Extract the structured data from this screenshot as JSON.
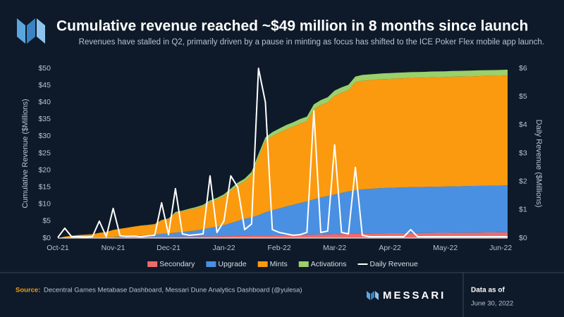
{
  "chart_data": {
    "type": "stacked_area_line",
    "title": "Cumulative revenue reached ~$49 million in 8 months since launch",
    "subtitle": "Revenues have stalled in Q2, primarily driven by a pause in minting as focus has shifted to the ICE Poker Flex mobile app launch.",
    "y_label": "Cumulative Revenue ($Millions)",
    "y2_label": "Daily Revenue ($Millions)",
    "categories": [
      "Oct-21",
      null,
      null,
      null,
      null,
      null,
      null,
      null,
      "Nov-21",
      null,
      null,
      null,
      null,
      null,
      null,
      null,
      "Dec-21",
      null,
      null,
      null,
      null,
      null,
      null,
      null,
      "Jan-22",
      null,
      null,
      null,
      null,
      null,
      null,
      null,
      "Feb-22",
      null,
      null,
      null,
      null,
      null,
      null,
      null,
      "Mar-22",
      null,
      null,
      null,
      null,
      null,
      null,
      null,
      "Apr-22",
      null,
      null,
      null,
      null,
      null,
      null,
      null,
      "May-22",
      null,
      null,
      null,
      null,
      null,
      null,
      null,
      "Jun-22",
      null
    ],
    "series": [
      {
        "name": "Secondary",
        "color": "#f06a6a",
        "values": [
          0,
          0.05,
          0.1,
          0.1,
          0.1,
          0.15,
          0.15,
          0.2,
          0.2,
          0.25,
          0.25,
          0.3,
          0.3,
          0.3,
          0.35,
          0.35,
          0.4,
          0.4,
          0.4,
          0.45,
          0.45,
          0.5,
          0.5,
          0.55,
          0.6,
          0.6,
          0.65,
          0.7,
          0.7,
          0.75,
          0.8,
          0.8,
          0.85,
          0.9,
          0.9,
          0.95,
          1.0,
          1.0,
          1.05,
          1.1,
          1.15,
          1.2,
          1.25,
          1.3,
          1.35,
          1.4,
          1.42,
          1.43,
          1.45,
          1.46,
          1.48,
          1.49,
          1.5,
          1.52,
          1.53,
          1.55,
          1.56,
          1.58,
          1.59,
          1.6,
          1.62,
          1.63,
          1.65,
          1.66,
          1.68,
          1.7
        ]
      },
      {
        "name": "Upgrade",
        "color": "#4a90e2",
        "values": [
          0,
          0,
          0,
          0,
          0,
          0,
          0,
          0,
          0.1,
          0.2,
          0.3,
          0.4,
          0.5,
          0.6,
          0.7,
          0.9,
          1.0,
          1.2,
          1.4,
          1.6,
          1.8,
          2.1,
          2.5,
          2.8,
          3.2,
          3.8,
          4.4,
          5.0,
          5.4,
          6.0,
          6.8,
          7.4,
          7.9,
          8.4,
          8.9,
          9.4,
          9.8,
          10.4,
          10.9,
          11.3,
          11.7,
          12.1,
          12.5,
          12.8,
          13.0,
          13.1,
          13.2,
          13.3,
          13.35,
          13.4,
          13.45,
          13.5,
          13.52,
          13.55,
          13.58,
          13.6,
          13.62,
          13.65,
          13.67,
          13.7,
          13.72,
          13.74,
          13.76,
          13.78,
          13.8,
          13.82
        ]
      },
      {
        "name": "Mints",
        "color": "#fb9a0e",
        "values": [
          0,
          0.4,
          0.6,
          0.8,
          0.9,
          1.0,
          1.4,
          1.6,
          2.1,
          2.3,
          2.5,
          2.7,
          2.8,
          2.9,
          3.0,
          4.0,
          4.2,
          5.8,
          6.0,
          6.3,
          6.5,
          6.8,
          7.6,
          8.0,
          8.5,
          9.5,
          10.5,
          11.0,
          12.5,
          17.0,
          21.0,
          21.8,
          22.3,
          22.7,
          23.0,
          23.3,
          23.6,
          26.5,
          27.2,
          27.5,
          29.0,
          29.5,
          29.8,
          31.8,
          32.0,
          32.0,
          32.05,
          32.1,
          32.1,
          32.15,
          32.15,
          32.2,
          32.2,
          32.2,
          32.25,
          32.25,
          32.25,
          32.3,
          32.3,
          32.3,
          32.3,
          32.35,
          32.35,
          32.35,
          32.35,
          32.4
        ]
      },
      {
        "name": "Activations",
        "color": "#9bd06a",
        "values": [
          0,
          0,
          0,
          0,
          0,
          0,
          0,
          0,
          0,
          0,
          0,
          0,
          0.1,
          0.1,
          0.1,
          0.1,
          0.2,
          0.3,
          0.3,
          0.3,
          0.4,
          0.4,
          0.5,
          0.5,
          0.6,
          0.7,
          0.8,
          0.8,
          0.9,
          1.0,
          1.1,
          1.2,
          1.2,
          1.3,
          1.3,
          1.4,
          1.4,
          1.5,
          1.5,
          1.6,
          1.6,
          1.6,
          1.6,
          1.7,
          1.7,
          1.7,
          1.7,
          1.7,
          1.7,
          1.7,
          1.7,
          1.7,
          1.7,
          1.7,
          1.7,
          1.7,
          1.7,
          1.7,
          1.7,
          1.7,
          1.7,
          1.7,
          1.7,
          1.7,
          1.7,
          1.7
        ]
      },
      {
        "name": "Daily Revenue",
        "color": "#ffffff",
        "axis": "y2",
        "values": [
          0.02,
          0.35,
          0.05,
          0.05,
          0.04,
          0.05,
          0.6,
          0.05,
          1.05,
          0.08,
          0.06,
          0.07,
          0.05,
          0.08,
          0.1,
          1.25,
          0.12,
          1.75,
          0.15,
          0.1,
          0.12,
          0.15,
          2.2,
          0.2,
          0.6,
          2.2,
          1.8,
          0.3,
          0.5,
          6.0,
          4.8,
          0.3,
          0.2,
          0.15,
          0.1,
          0.12,
          0.2,
          4.5,
          0.2,
          0.25,
          3.3,
          0.2,
          0.15,
          2.5,
          0.1,
          0.05,
          0.05,
          0.05,
          0.05,
          0.05,
          0.05,
          0.3,
          0.05,
          0.05,
          0.05,
          0.05,
          0.05,
          0.05,
          0.05,
          0.05,
          0.05,
          0.05,
          0.05,
          0.05,
          0.05,
          0.05
        ]
      }
    ],
    "ylim": [
      0,
      50
    ],
    "yticks": [
      {
        "value": 0,
        "label": "$0"
      },
      {
        "value": 5,
        "label": "$5"
      },
      {
        "value": 10,
        "label": "$10"
      },
      {
        "value": 15,
        "label": "$15"
      },
      {
        "value": 20,
        "label": "$20"
      },
      {
        "value": 25,
        "label": "$25"
      },
      {
        "value": 30,
        "label": "$30"
      },
      {
        "value": 35,
        "label": "$35"
      },
      {
        "value": 40,
        "label": "$40"
      },
      {
        "value": 45,
        "label": "$45"
      },
      {
        "value": 50,
        "label": "$50"
      }
    ],
    "y2lim": [
      0,
      6
    ],
    "y2ticks": [
      {
        "value": 0,
        "label": "$0"
      },
      {
        "value": 1,
        "label": "$1"
      },
      {
        "value": 2,
        "label": "$2"
      },
      {
        "value": 3,
        "label": "$3"
      },
      {
        "value": 4,
        "label": "$4"
      },
      {
        "value": 5,
        "label": "$5"
      },
      {
        "value": 6,
        "label": "$6"
      }
    ],
    "legend": "bottom"
  },
  "footer": {
    "source_label": "Source:",
    "source": "Decentral Games Metabase Dashboard, Messari Dune Analytics Dashboard (@yulesa)",
    "brand": "MESSARI",
    "data_as_of": "Data as of",
    "date": "June 30, 2022"
  }
}
